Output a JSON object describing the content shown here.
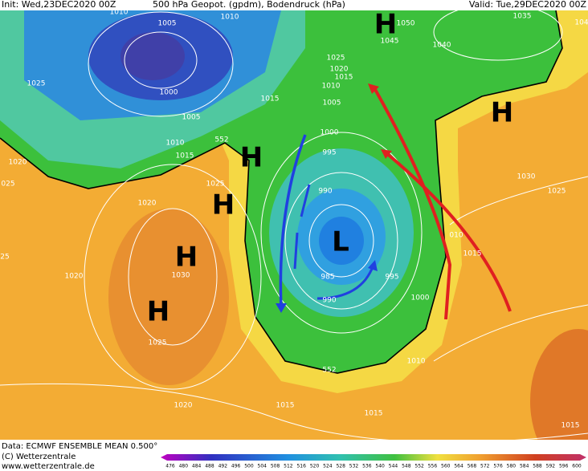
{
  "header": {
    "init": "Init: Wed,23DEC2020 00Z",
    "title": "500 hPa Geopot. (gpdm), Bodendruck (hPa)",
    "valid": "Valid: Tue,29DEC2020 00Z"
  },
  "pressure_centers": [
    "H",
    "H",
    "H",
    "H",
    "H",
    "H",
    "L"
  ],
  "isobar_labels": [
    "1010",
    "1005",
    "1010",
    "1045",
    "1050",
    "1040",
    "1035",
    "104",
    "1025",
    "1000",
    "1025",
    "1020",
    "1015",
    "1010",
    "1015",
    "1005",
    "1005",
    "1000",
    "995",
    "990",
    "1010",
    "1015",
    "552",
    "1020",
    "025",
    "1025",
    "1020",
    "1030",
    "1025",
    "010",
    "1015",
    "25",
    "1020",
    "1030",
    "985",
    "995",
    "990",
    "1000",
    "1025",
    "1010",
    "552",
    "1020",
    "1015",
    "1015",
    "1015"
  ],
  "footer": {
    "source": "Data: ECMWF ENSEMBLE MEAN 0.500°",
    "copyright": "(C) Wetterzentrale",
    "url": "www.wetterzentrale.de"
  },
  "colorbar": [
    476,
    480,
    484,
    488,
    492,
    496,
    500,
    504,
    508,
    512,
    516,
    520,
    524,
    528,
    532,
    536,
    540,
    544,
    548,
    552,
    556,
    560,
    564,
    568,
    572,
    576,
    580,
    584,
    588,
    592,
    596,
    600
  ]
}
